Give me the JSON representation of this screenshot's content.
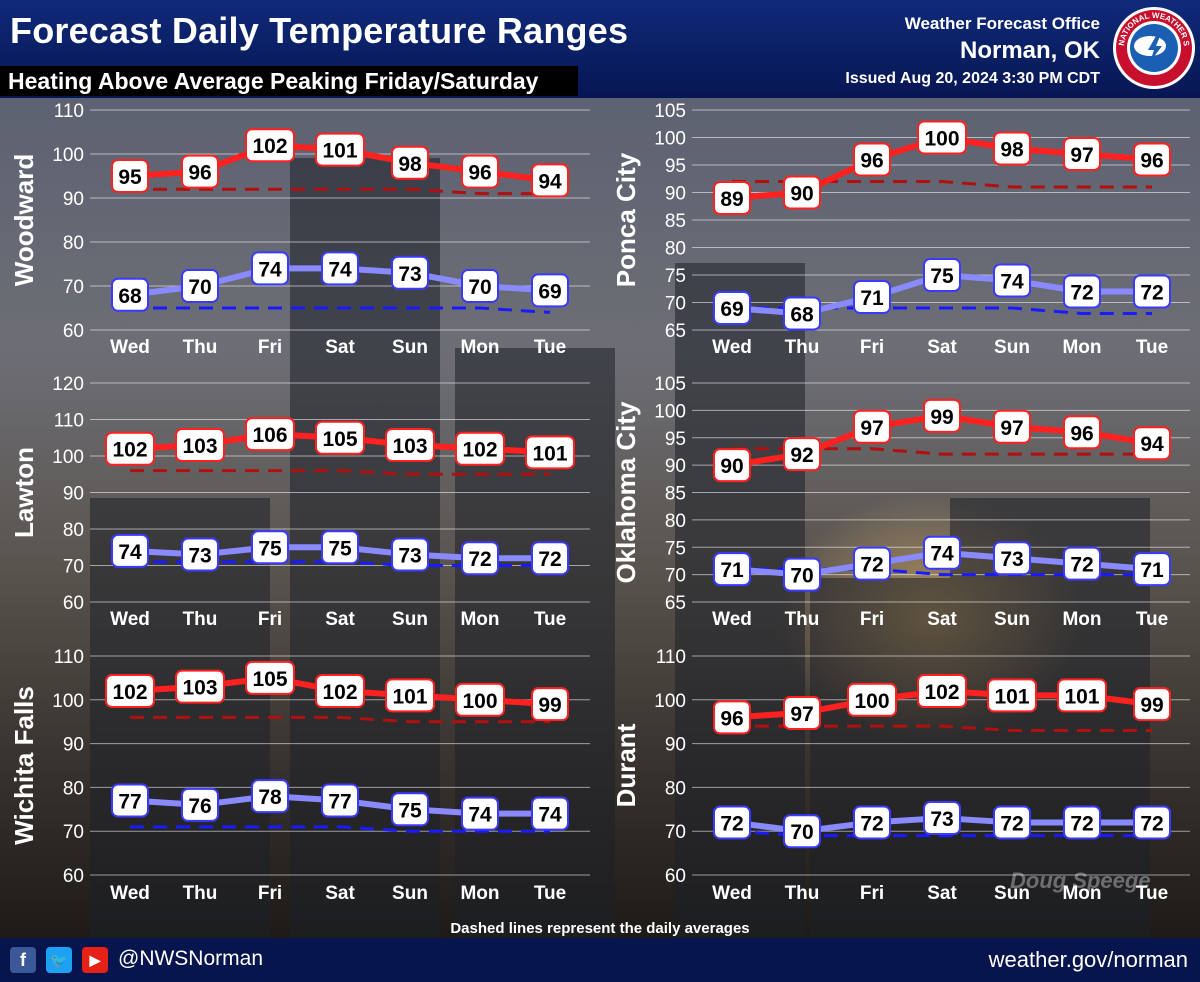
{
  "header": {
    "title": "Forecast Daily Temperature Ranges",
    "subtitle": "Heating Above Average Peaking Friday/Saturday",
    "office_line1": "Weather Forecast Office",
    "office_line2": "Norman, OK",
    "issued": "Issued Aug 20, 2024 3:30 PM CDT",
    "logo_text": "NATIONAL WEATHER SERVICE"
  },
  "footnote": "Dashed lines represent the daily averages",
  "watermark": "Doug Speege",
  "footer": {
    "handle": "@NWSNorman",
    "website": "weather.gov/norman",
    "icons": [
      "facebook-icon",
      "twitter-icon",
      "youtube-icon"
    ]
  },
  "colors": {
    "high": "#ff2020",
    "high_avg": "#b01010",
    "low": "#8a8aff",
    "low_avg": "#1a1aff"
  },
  "chart_data": [
    {
      "type": "line",
      "title": "Woodward",
      "categories": [
        "Wed",
        "Thu",
        "Fri",
        "Sat",
        "Sun",
        "Mon",
        "Tue"
      ],
      "ylim": [
        60,
        110
      ],
      "yticks": [
        60,
        70,
        80,
        90,
        100,
        110
      ],
      "series": [
        {
          "values": [
            95,
            96,
            102,
            101,
            98,
            96,
            94
          ]
        },
        {
          "values": [
            68,
            70,
            74,
            74,
            73,
            70,
            69
          ]
        },
        {
          "values": [
            92,
            92,
            92,
            92,
            92,
            91,
            91
          ]
        },
        {
          "values": [
            65,
            65,
            65,
            65,
            65,
            65,
            64
          ]
        }
      ]
    },
    {
      "type": "line",
      "title": "Ponca City",
      "categories": [
        "Wed",
        "Thu",
        "Fri",
        "Sat",
        "Sun",
        "Mon",
        "Tue"
      ],
      "ylim": [
        65,
        105
      ],
      "yticks": [
        65,
        70,
        75,
        80,
        85,
        90,
        95,
        100,
        105
      ],
      "series": [
        {
          "values": [
            89,
            90,
            96,
            100,
            98,
            97,
            96
          ]
        },
        {
          "values": [
            69,
            68,
            71,
            75,
            74,
            72,
            72
          ]
        },
        {
          "values": [
            92,
            92,
            92,
            92,
            91,
            91,
            91
          ]
        },
        {
          "values": [
            69,
            69,
            69,
            69,
            69,
            68,
            68
          ]
        }
      ]
    },
    {
      "type": "line",
      "title": "Lawton",
      "categories": [
        "Wed",
        "Thu",
        "Fri",
        "Sat",
        "Sun",
        "Mon",
        "Tue"
      ],
      "ylim": [
        60,
        120
      ],
      "yticks": [
        60,
        70,
        80,
        90,
        100,
        110,
        120
      ],
      "series": [
        {
          "values": [
            102,
            103,
            106,
            105,
            103,
            102,
            101
          ]
        },
        {
          "values": [
            74,
            73,
            75,
            75,
            73,
            72,
            72
          ]
        },
        {
          "values": [
            96,
            96,
            96,
            96,
            95,
            95,
            95
          ]
        },
        {
          "values": [
            71,
            71,
            71,
            71,
            70,
            70,
            70
          ]
        }
      ]
    },
    {
      "type": "line",
      "title": "Oklahoma City",
      "categories": [
        "Wed",
        "Thu",
        "Fri",
        "Sat",
        "Sun",
        "Mon",
        "Tue"
      ],
      "ylim": [
        65,
        105
      ],
      "yticks": [
        65,
        70,
        75,
        80,
        85,
        90,
        95,
        100,
        105
      ],
      "series": [
        {
          "values": [
            90,
            92,
            97,
            99,
            97,
            96,
            94
          ]
        },
        {
          "values": [
            71,
            70,
            72,
            74,
            73,
            72,
            71
          ]
        },
        {
          "values": [
            93,
            93,
            93,
            92,
            92,
            92,
            92
          ]
        },
        {
          "values": [
            71,
            71,
            71,
            70,
            70,
            70,
            70
          ]
        }
      ]
    },
    {
      "type": "line",
      "title": "Wichita Falls",
      "categories": [
        "Wed",
        "Thu",
        "Fri",
        "Sat",
        "Sun",
        "Mon",
        "Tue"
      ],
      "ylim": [
        60,
        110
      ],
      "yticks": [
        60,
        70,
        80,
        90,
        100,
        110
      ],
      "series": [
        {
          "values": [
            102,
            103,
            105,
            102,
            101,
            100,
            99
          ]
        },
        {
          "values": [
            77,
            76,
            78,
            77,
            75,
            74,
            74
          ]
        },
        {
          "values": [
            96,
            96,
            96,
            96,
            95,
            95,
            95
          ]
        },
        {
          "values": [
            71,
            71,
            71,
            71,
            70,
            70,
            70
          ]
        }
      ]
    },
    {
      "type": "line",
      "title": "Durant",
      "categories": [
        "Wed",
        "Thu",
        "Fri",
        "Sat",
        "Sun",
        "Mon",
        "Tue"
      ],
      "ylim": [
        60,
        110
      ],
      "yticks": [
        60,
        70,
        80,
        90,
        100,
        110
      ],
      "series": [
        {
          "values": [
            96,
            97,
            100,
            102,
            101,
            101,
            99
          ]
        },
        {
          "values": [
            72,
            70,
            72,
            73,
            72,
            72,
            72
          ]
        },
        {
          "values": [
            94,
            94,
            94,
            94,
            93,
            93,
            93
          ]
        },
        {
          "values": [
            70,
            69,
            69,
            69,
            69,
            69,
            69
          ]
        }
      ]
    }
  ]
}
